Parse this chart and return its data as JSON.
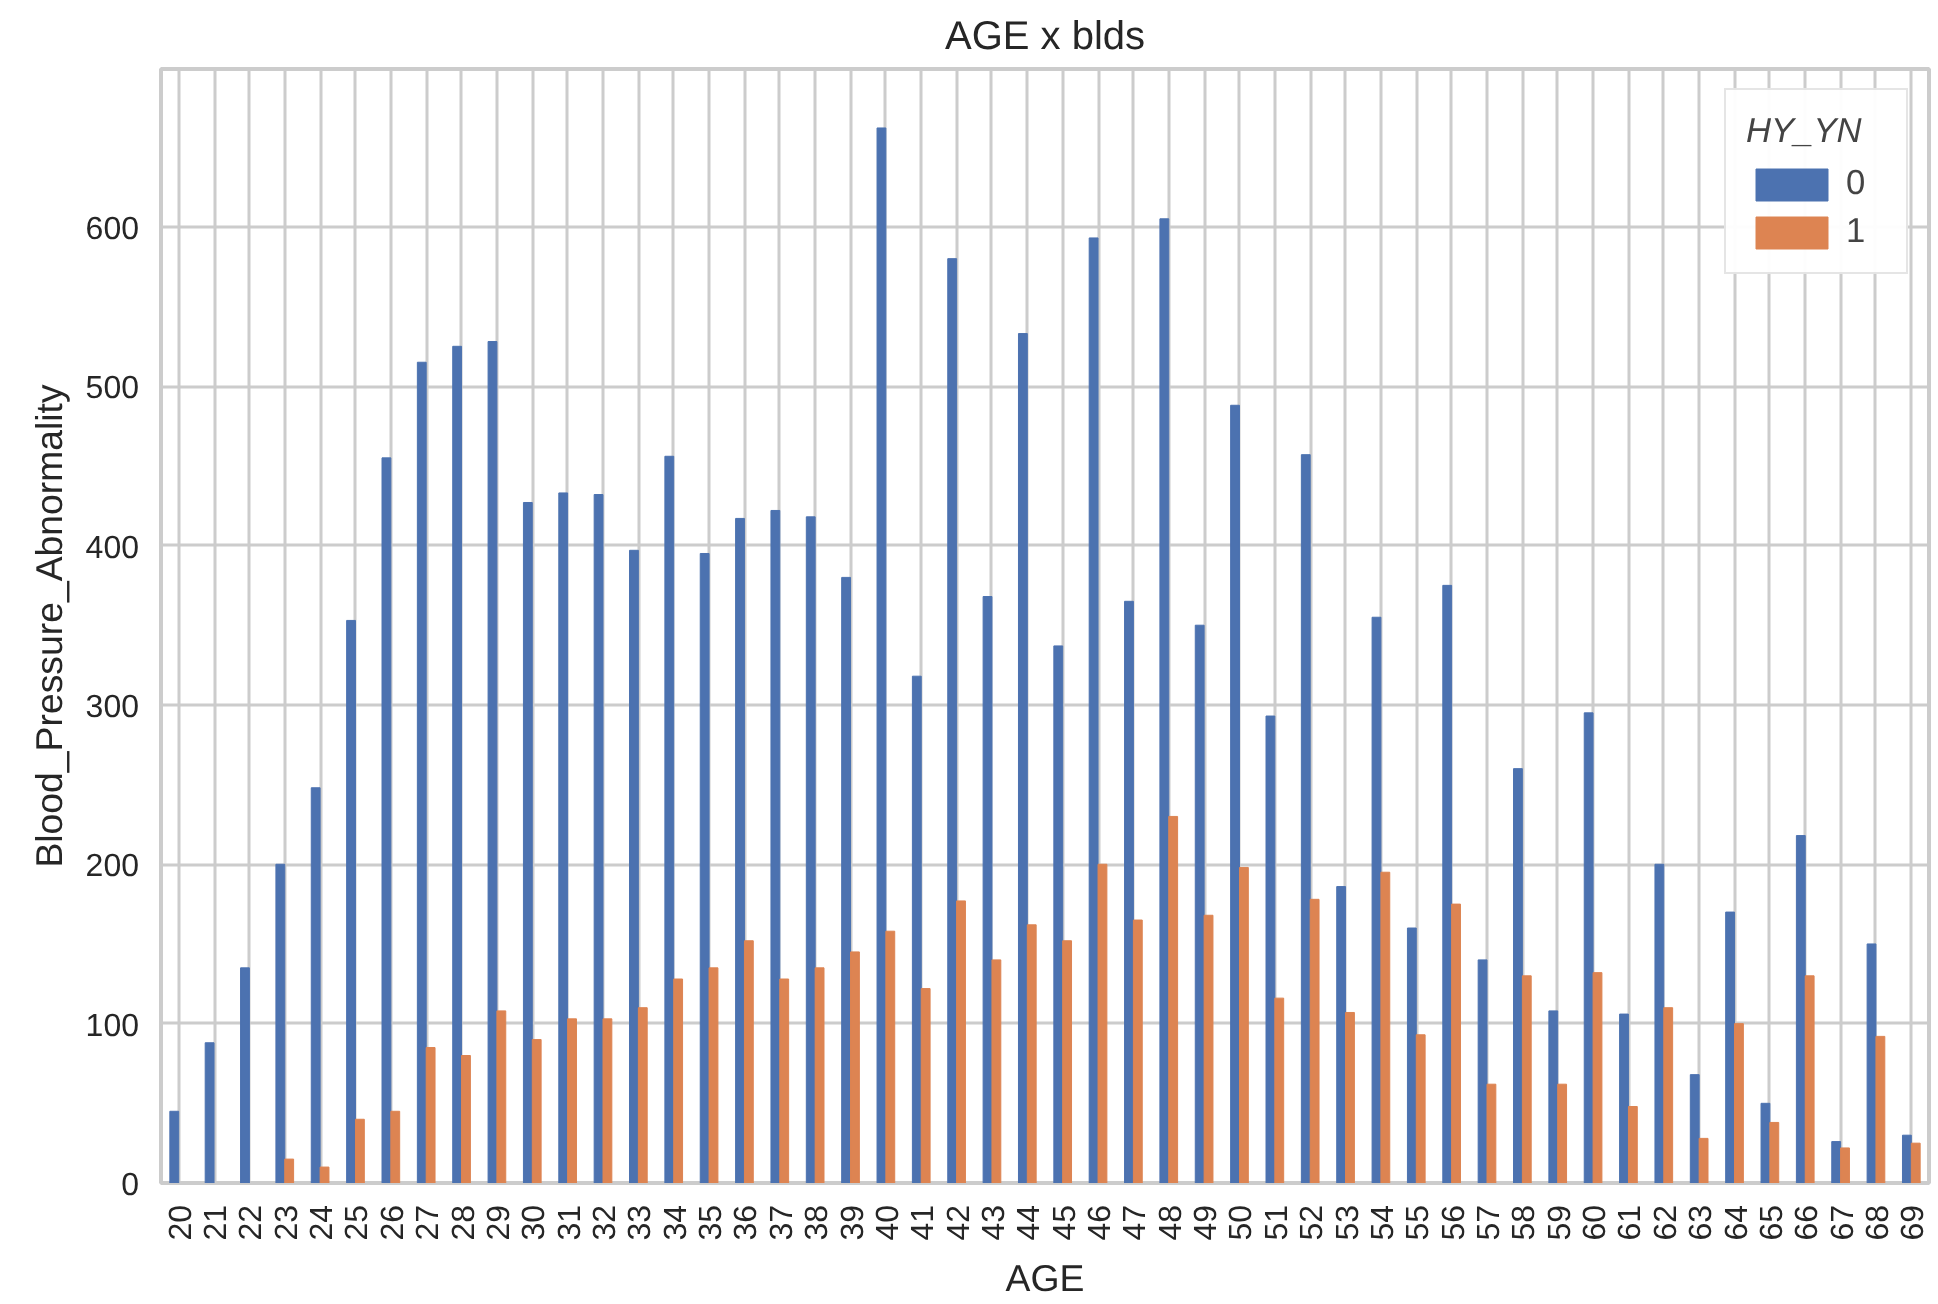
{
  "chart_data": {
    "type": "bar",
    "title": "AGE x blds",
    "xlabel": "AGE",
    "ylabel": "Blood_Pressure_Abnormality",
    "legend_title": "HY_YN",
    "categories": [
      "20",
      "21",
      "22",
      "23",
      "24",
      "25",
      "26",
      "27",
      "28",
      "29",
      "30",
      "31",
      "32",
      "33",
      "34",
      "35",
      "36",
      "37",
      "38",
      "39",
      "40",
      "41",
      "42",
      "43",
      "44",
      "45",
      "46",
      "47",
      "48",
      "49",
      "50",
      "51",
      "52",
      "53",
      "54",
      "55",
      "56",
      "57",
      "58",
      "59",
      "60",
      "61",
      "62",
      "63",
      "64",
      "65",
      "66",
      "67",
      "68",
      "69"
    ],
    "series": [
      {
        "name": "0",
        "color": "#4c72b0",
        "values": [
          45,
          88,
          135,
          200,
          248,
          353,
          455,
          515,
          525,
          528,
          427,
          433,
          432,
          397,
          456,
          395,
          417,
          422,
          418,
          380,
          662,
          318,
          580,
          368,
          533,
          337,
          593,
          365,
          605,
          350,
          488,
          293,
          457,
          186,
          355,
          160,
          375,
          140,
          260,
          108,
          295,
          106,
          200,
          68,
          170,
          50,
          218,
          26,
          150,
          30
        ]
      },
      {
        "name": "1",
        "color": "#dd8452",
        "values": [
          null,
          null,
          null,
          15,
          10,
          40,
          45,
          85,
          80,
          108,
          90,
          103,
          103,
          110,
          128,
          135,
          152,
          128,
          135,
          145,
          158,
          122,
          177,
          140,
          162,
          152,
          200,
          165,
          230,
          168,
          198,
          116,
          178,
          107,
          195,
          93,
          175,
          62,
          130,
          62,
          132,
          48,
          110,
          28,
          100,
          38,
          130,
          22,
          92,
          25
        ]
      }
    ],
    "ylim": [
      0,
      699
    ],
    "yticks": [
      0,
      100,
      200,
      300,
      400,
      500,
      600
    ],
    "grid": true,
    "legend": "top right"
  }
}
